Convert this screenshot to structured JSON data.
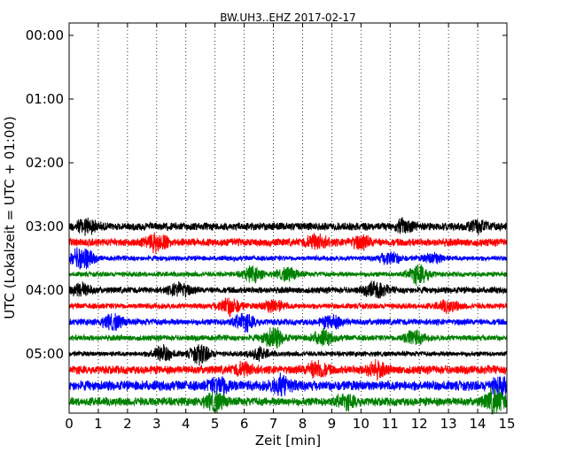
{
  "chart_data": {
    "type": "line",
    "title": "BW.UH3..EHZ 2017-02-17",
    "xlabel": "Zeit  [min]",
    "ylabel": "UTC (Lokalzeit = UTC + 01:00)",
    "xlim": [
      0,
      15
    ],
    "x_ticks": [
      "0",
      "1",
      "2",
      "3",
      "4",
      "5",
      "6",
      "7",
      "8",
      "9",
      "10",
      "11",
      "12",
      "13",
      "14",
      "15"
    ],
    "y_ticks": [
      "00:00",
      "01:00",
      "02:00",
      "03:00",
      "04:00",
      "05:00"
    ],
    "grid": "vertical dotted lines at each minute",
    "legend": "none",
    "series": [
      {
        "start": "03:00",
        "color": "#000000",
        "amplitude": 0.55,
        "bursts": [
          [
            0.6,
            0.9
          ],
          [
            11.5,
            0.7
          ],
          [
            14.0,
            0.6
          ]
        ]
      },
      {
        "start": "03:15",
        "color": "#ff0000",
        "amplitude": 0.55,
        "bursts": [
          [
            3.0,
            1.0
          ],
          [
            8.5,
            0.9
          ],
          [
            10.0,
            0.7
          ]
        ]
      },
      {
        "start": "03:30",
        "color": "#0000ff",
        "amplitude": 0.35,
        "bursts": [
          [
            0.45,
            1.6
          ],
          [
            11.0,
            0.8
          ],
          [
            12.5,
            0.6
          ]
        ]
      },
      {
        "start": "03:45",
        "color": "#008000",
        "amplitude": 0.35,
        "bursts": [
          [
            6.3,
            0.9
          ],
          [
            7.5,
            0.8
          ],
          [
            12.0,
            1.2
          ]
        ]
      },
      {
        "start": "04:00",
        "color": "#000000",
        "amplitude": 0.45,
        "bursts": [
          [
            0.4,
            0.8
          ],
          [
            3.8,
            0.9
          ],
          [
            10.5,
            1.0
          ]
        ]
      },
      {
        "start": "04:15",
        "color": "#ff0000",
        "amplitude": 0.4,
        "bursts": [
          [
            5.5,
            1.1
          ],
          [
            7.0,
            0.8
          ],
          [
            13.0,
            0.7
          ]
        ]
      },
      {
        "start": "04:30",
        "color": "#0000ff",
        "amplitude": 0.45,
        "bursts": [
          [
            1.5,
            0.9
          ],
          [
            6.0,
            1.0
          ],
          [
            9.0,
            0.8
          ]
        ]
      },
      {
        "start": "04:45",
        "color": "#008000",
        "amplitude": 0.4,
        "bursts": [
          [
            7.0,
            1.3
          ],
          [
            8.7,
            0.9
          ],
          [
            11.8,
            0.9
          ]
        ]
      },
      {
        "start": "05:00",
        "color": "#000000",
        "amplitude": 0.35,
        "bursts": [
          [
            3.2,
            1.0
          ],
          [
            4.5,
            1.2
          ],
          [
            6.5,
            0.7
          ]
        ]
      },
      {
        "start": "05:15",
        "color": "#ff0000",
        "amplitude": 0.6,
        "bursts": [
          [
            8.5,
            1.0
          ],
          [
            10.5,
            0.8
          ],
          [
            6.0,
            0.7
          ]
        ]
      },
      {
        "start": "05:30",
        "color": "#0000ff",
        "amplitude": 0.7,
        "bursts": [
          [
            5.2,
            1.0
          ],
          [
            7.3,
            1.1
          ],
          [
            14.8,
            0.9
          ]
        ]
      },
      {
        "start": "05:45",
        "color": "#008000",
        "amplitude": 0.6,
        "bursts": [
          [
            5.0,
            1.0
          ],
          [
            14.6,
            1.5
          ],
          [
            9.5,
            0.7
          ]
        ]
      }
    ]
  }
}
